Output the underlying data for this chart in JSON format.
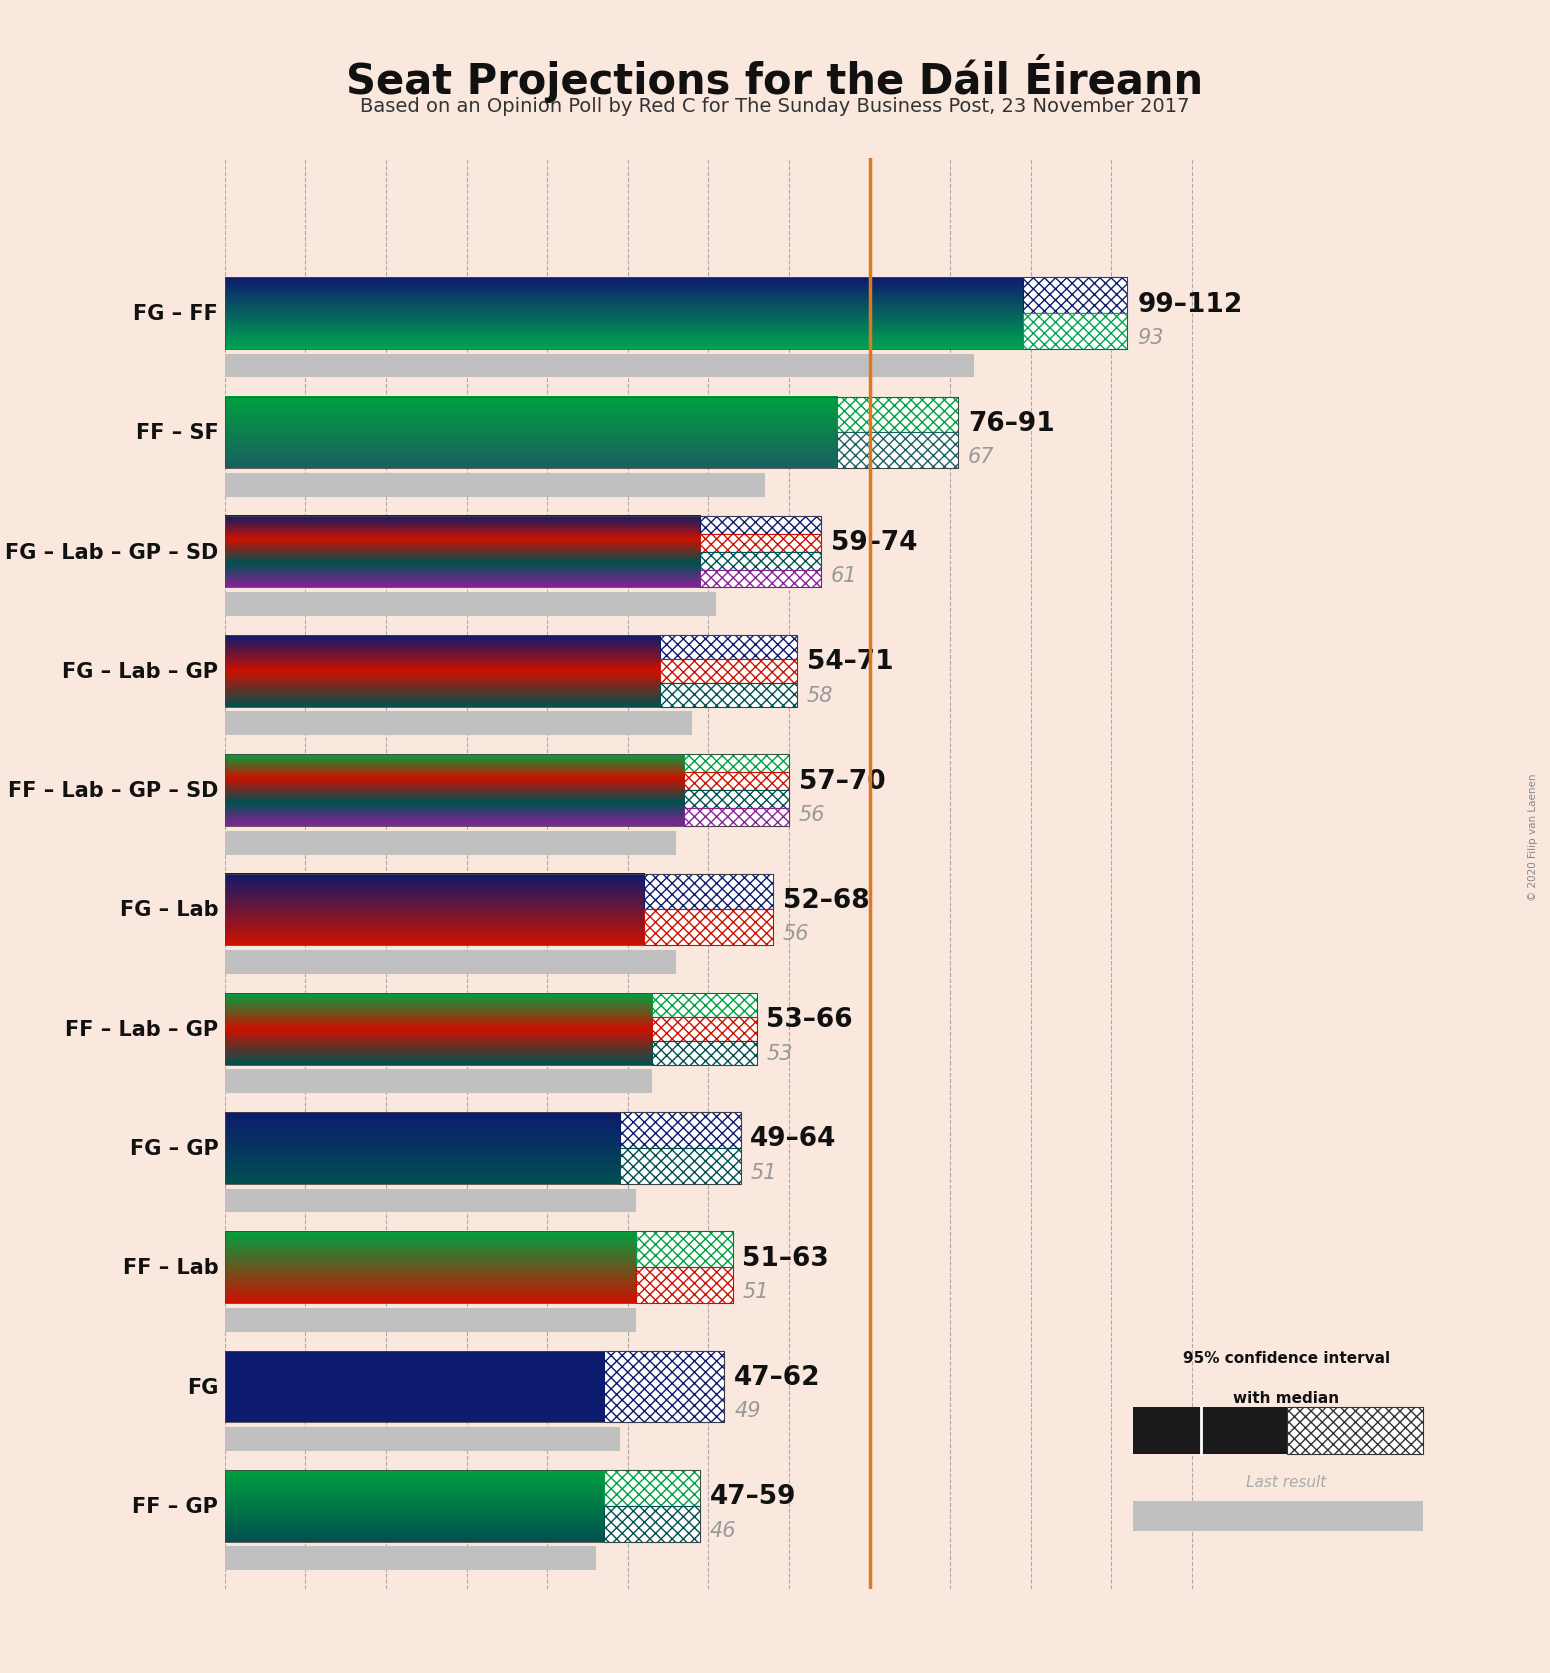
{
  "title": "Seat Projections for the Dáil Éireann",
  "subtitle": "Based on an Opinion Poll by Red C for The Sunday Business Post, 23 November 2017",
  "copyright": "© 2020 Filip van Laenen",
  "background_color": "#fae8de",
  "last_result_color": "#c0c0c0",
  "majority_line_color": "#e07820",
  "majority_line": 80,
  "xlim_max": 125,
  "coalitions": [
    {
      "label": "FG – FF",
      "ci_min": 99,
      "ci_max": 112,
      "last_result": 93,
      "colors": [
        "#0d1b6e",
        "#00a550"
      ]
    },
    {
      "label": "FF – SF",
      "ci_min": 76,
      "ci_max": 91,
      "last_result": 67,
      "colors": [
        "#00a040",
        "#1a6060"
      ]
    },
    {
      "label": "FG – Lab – GP – SD",
      "ci_min": 59,
      "ci_max": 74,
      "last_result": 61,
      "colors": [
        "#0d1b6e",
        "#cc1100",
        "#005050",
        "#882299"
      ]
    },
    {
      "label": "FG – Lab – GP",
      "ci_min": 54,
      "ci_max": 71,
      "last_result": 58,
      "colors": [
        "#0d1b6e",
        "#cc1100",
        "#005050"
      ]
    },
    {
      "label": "FF – Lab – GP – SD",
      "ci_min": 57,
      "ci_max": 70,
      "last_result": 56,
      "colors": [
        "#00a040",
        "#cc1100",
        "#005050",
        "#882299"
      ]
    },
    {
      "label": "FG – Lab",
      "ci_min": 52,
      "ci_max": 68,
      "last_result": 56,
      "colors": [
        "#0d1b6e",
        "#cc1100"
      ]
    },
    {
      "label": "FF – Lab – GP",
      "ci_min": 53,
      "ci_max": 66,
      "last_result": 53,
      "colors": [
        "#00a040",
        "#cc1100",
        "#005050"
      ]
    },
    {
      "label": "FG – GP",
      "ci_min": 49,
      "ci_max": 64,
      "last_result": 51,
      "colors": [
        "#0d1b6e",
        "#005050"
      ]
    },
    {
      "label": "FF – Lab",
      "ci_min": 51,
      "ci_max": 63,
      "last_result": 51,
      "colors": [
        "#00a040",
        "#cc1100"
      ]
    },
    {
      "label": "FG",
      "ci_min": 47,
      "ci_max": 62,
      "last_result": 49,
      "colors": [
        "#0d1b6e"
      ]
    },
    {
      "label": "FF – GP",
      "ci_min": 47,
      "ci_max": 59,
      "last_result": 46,
      "colors": [
        "#00a040",
        "#005050"
      ]
    }
  ]
}
